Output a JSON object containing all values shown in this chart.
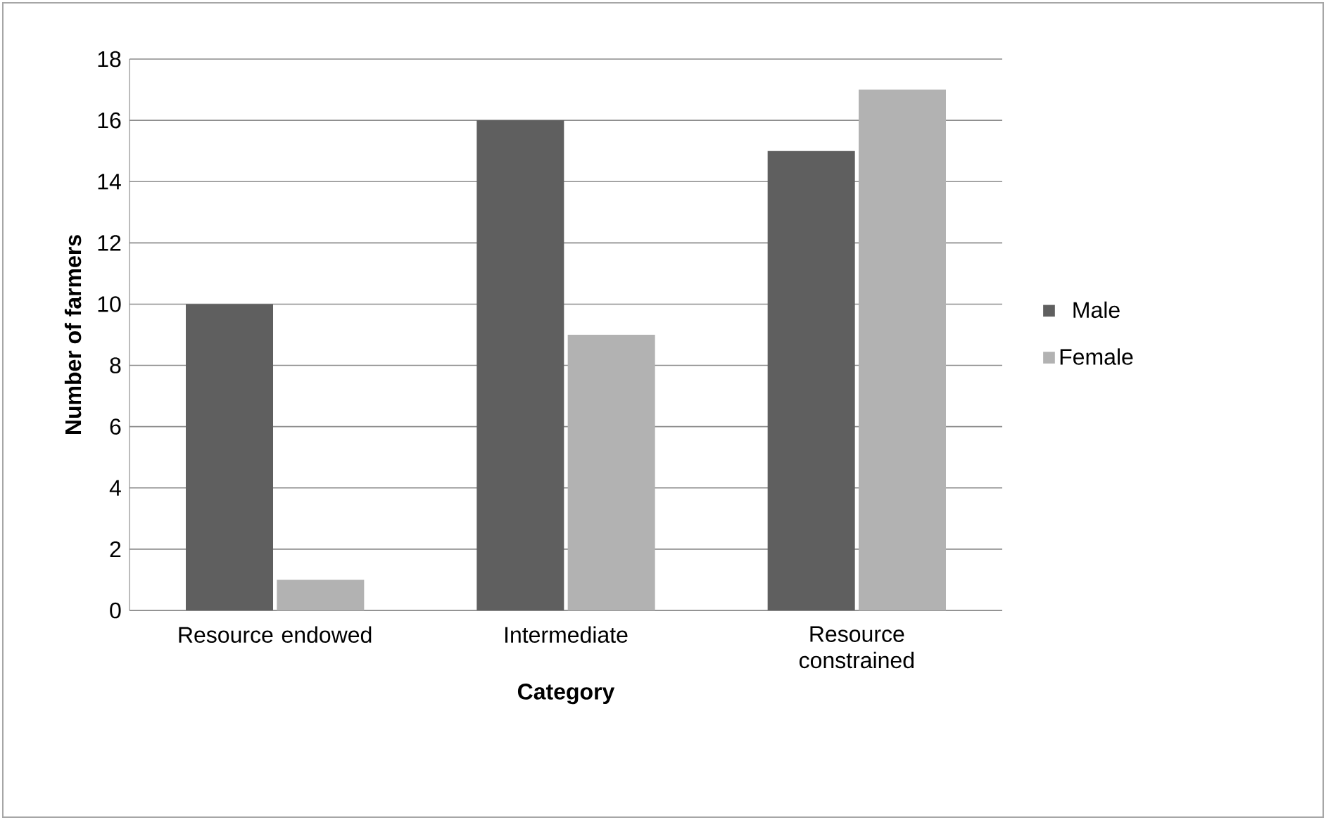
{
  "chart_data": {
    "type": "bar",
    "xlabel": "Category",
    "ylabel": "Number of farmers",
    "categories": [
      "Resource endowed",
      "Intermediate",
      "Resource constrained"
    ],
    "series": [
      {
        "name": "Male",
        "color": "#5f5f5f",
        "values": [
          10,
          16,
          15
        ]
      },
      {
        "name": "Female",
        "color": "#b2b2b2",
        "values": [
          1,
          9,
          17
        ]
      }
    ],
    "ylim": [
      0,
      18
    ],
    "yticks": [
      0,
      2,
      4,
      6,
      8,
      10,
      12,
      14,
      16,
      18
    ],
    "grid": "y",
    "legend": "right"
  }
}
